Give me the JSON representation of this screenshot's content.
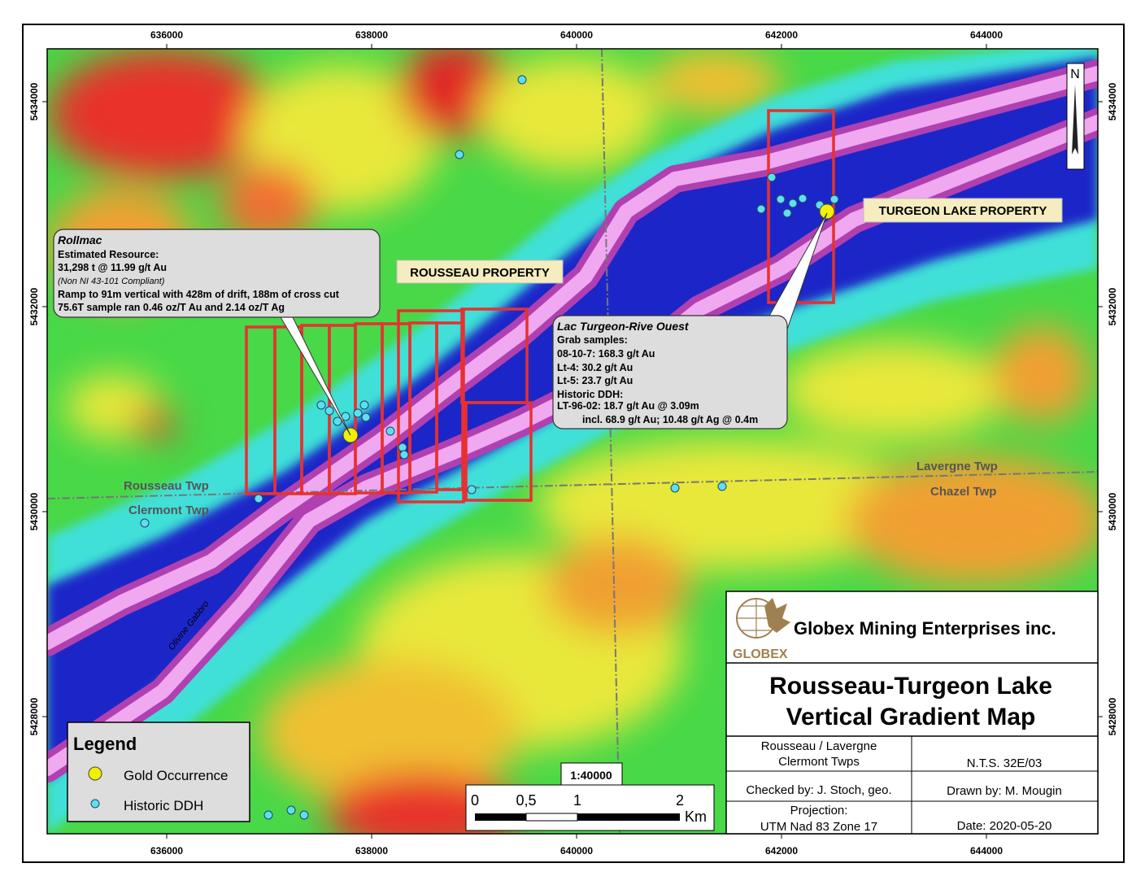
{
  "axes": {
    "x_labels": [
      636000,
      638000,
      640000,
      642000,
      644000
    ],
    "y_labels": [
      5434000,
      5432000,
      5430000,
      5428000
    ]
  },
  "north": "N",
  "properties": {
    "rousseau": "ROUSSEAU PROPERTY",
    "turgeon": "TURGEON LAKE PROPERTY"
  },
  "townships": {
    "rousseau": "Rousseau Twp",
    "clermont": "Clermont Twp",
    "lavergne": "Lavergne Twp",
    "chazel": "Chazel Twp"
  },
  "geology": "Olivine Gabbro",
  "callouts": [
    {
      "title": "Rollmac",
      "lines": [
        "Estimated Resource:",
        "31,298 t @ 11.99 g/t Au",
        "(Non NI 43-101 Compliant)",
        "Ramp to 91m vertical with 428m of drift, 188m of cross cut",
        "75.6T sample ran 0.46 oz/T Au and 2.14 oz/T Ag"
      ]
    },
    {
      "title": "Lac Turgeon-Rive Ouest",
      "lines": [
        "Grab samples:",
        "08-10-7: 168.3 g/t Au",
        "Lt-4: 30.2 g/t Au",
        "Lt-5: 23.7 g/t Au",
        "Historic DDH:",
        "LT-96-02: 18.7 g/t Au @ 3.09m",
        "incl. 68.9 g/t Au; 10.48 g/t Ag @ 0.4m"
      ]
    }
  ],
  "legend": {
    "title": "Legend",
    "items": [
      "Gold Occurrence",
      "Historic DDH"
    ]
  },
  "scale": {
    "ratio": "1:40000",
    "labels": [
      "0",
      "0,5",
      "1",
      "2"
    ],
    "unit": "Km"
  },
  "title_block": {
    "company": "Globex Mining Enterprises inc.",
    "logo": "GLOBEX",
    "title": [
      "Rousseau-Turgeon Lake",
      "Vertical Gradient Map"
    ],
    "rows": [
      [
        [
          "Rousseau / Lavergne",
          "Clermont Twps"
        ],
        [
          "N.T.S. 32E/03"
        ]
      ],
      [
        [
          "Checked by: J. Stoch, geo."
        ],
        [
          "Drawn by: M. Mougin"
        ]
      ],
      [
        [
          "Projection:",
          "UTM Nad 83 Zone 17"
        ],
        [
          "Date: 2020-05-20"
        ]
      ]
    ]
  }
}
